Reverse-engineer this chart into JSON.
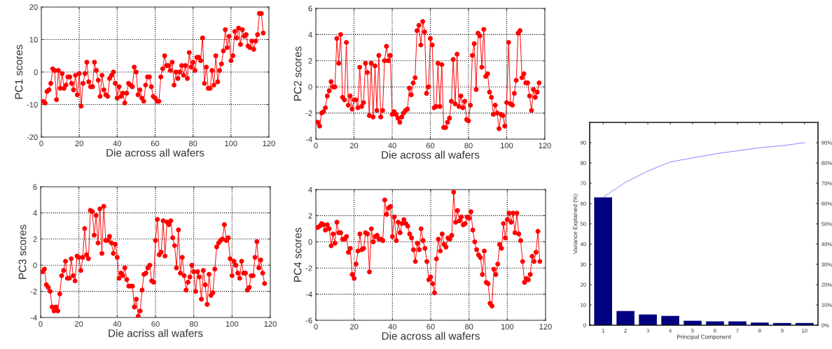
{
  "chart_data": [
    {
      "type": "line",
      "xlabel": "Die across all wafers",
      "ylabel": "PC1 scores",
      "xlim": [
        0,
        120
      ],
      "xticks": [
        0,
        20,
        40,
        60,
        80,
        100,
        120
      ],
      "ylim": [
        -20,
        20
      ],
      "yticks": [
        -20,
        -10,
        0,
        10,
        20
      ],
      "grid": true,
      "marker": "circle",
      "line_style": "solid",
      "x": [
        1,
        2,
        3,
        4,
        5,
        6,
        7,
        8,
        9,
        10,
        11,
        12,
        13,
        14,
        15,
        16,
        17,
        18,
        19,
        20,
        21,
        22,
        23,
        24,
        25,
        26,
        27,
        28,
        29,
        30,
        31,
        32,
        33,
        34,
        35,
        36,
        37,
        38,
        39,
        40,
        41,
        42,
        43,
        44,
        45,
        46,
        47,
        48,
        49,
        50,
        51,
        52,
        53,
        54,
        55,
        56,
        57,
        58,
        59,
        60,
        61,
        62,
        63,
        64,
        65,
        66,
        67,
        68,
        69,
        70,
        71,
        72,
        73,
        74,
        75,
        76,
        77,
        78,
        79,
        80,
        81,
        82,
        83,
        84,
        85,
        86,
        87,
        88,
        89,
        90,
        91,
        92,
        93,
        94,
        95,
        96,
        97,
        98,
        99,
        100,
        101,
        102,
        103,
        104,
        105,
        106,
        107,
        108,
        109,
        110,
        111,
        112,
        113,
        114,
        115,
        116,
        117
      ],
      "series": [
        {
          "color": "#ff0000",
          "values": [
            -9,
            -9.5,
            -6,
            -5.5,
            -3.5,
            1,
            0.5,
            -8.5,
            0.5,
            -5,
            -0.5,
            -5,
            -4,
            -1.5,
            -1.5,
            -3.5,
            -5.5,
            -1,
            -7,
            -0.5,
            -10.5,
            -3.5,
            -0.5,
            3,
            -3,
            -4.5,
            -4.5,
            3,
            0.5,
            -2.5,
            -7.5,
            -1,
            -5.5,
            -7,
            -7.5,
            -2,
            -1,
            0,
            -3.5,
            -8,
            -4.5,
            -7.5,
            -6.5,
            -9.5,
            -6.5,
            -3.5,
            -4,
            -4.5,
            1.5,
            0,
            -7,
            -5.5,
            -8,
            -9,
            -4,
            -1.5,
            -1.5,
            -4.5,
            -7.5,
            -8,
            -9,
            -9,
            -1.5,
            1,
            5,
            2,
            2,
            0.5,
            3,
            -4,
            0,
            -2,
            0,
            2,
            -1,
            2,
            -2,
            6,
            1.5,
            3,
            0.5,
            4.5,
            4.5,
            3.5,
            10.5,
            -3.5,
            1.5,
            -5,
            -5,
            0.5,
            -4,
            5,
            -3,
            0.5,
            2.5,
            6.5,
            13,
            7.5,
            11,
            3.5,
            5,
            12.5,
            10.5,
            13.5,
            8.5,
            13,
            11,
            11.5,
            8,
            7.5,
            9.5,
            7,
            9.5,
            11.5,
            18,
            18,
            12
          ]
        }
      ]
    },
    {
      "type": "line",
      "xlabel": "Die across all wafers",
      "ylabel": "PC2 scores",
      "xlim": [
        0,
        120
      ],
      "xticks": [
        0,
        20,
        40,
        60,
        80,
        100,
        120
      ],
      "ylim": [
        -4,
        6
      ],
      "yticks": [
        -4,
        -2,
        0,
        2,
        4,
        6
      ],
      "grid": true,
      "marker": "circle",
      "line_style": "solid",
      "x": [
        1,
        2,
        3,
        4,
        5,
        6,
        7,
        8,
        9,
        10,
        11,
        12,
        13,
        14,
        15,
        16,
        17,
        18,
        19,
        20,
        21,
        22,
        23,
        24,
        25,
        26,
        27,
        28,
        29,
        30,
        31,
        32,
        33,
        34,
        35,
        36,
        37,
        38,
        39,
        40,
        41,
        42,
        43,
        44,
        45,
        46,
        47,
        48,
        49,
        50,
        51,
        52,
        53,
        54,
        55,
        56,
        57,
        58,
        59,
        60,
        61,
        62,
        63,
        64,
        65,
        66,
        67,
        68,
        69,
        70,
        71,
        72,
        73,
        74,
        75,
        76,
        77,
        78,
        79,
        80,
        81,
        82,
        83,
        84,
        85,
        86,
        87,
        88,
        89,
        90,
        91,
        92,
        93,
        94,
        95,
        96,
        97,
        98,
        99,
        100,
        101,
        102,
        103,
        104,
        105,
        106,
        107,
        108,
        109,
        110,
        111,
        112,
        113,
        114,
        115,
        116,
        117
      ],
      "series": [
        {
          "color": "#ff0000",
          "values": [
            -2.7,
            -3,
            -2,
            -1.9,
            -1.6,
            -0.7,
            -0.3,
            0.4,
            0,
            0,
            3.7,
            1.8,
            4,
            -0.8,
            -1,
            3.4,
            -1.4,
            -0.7,
            -1.7,
            -1,
            -1,
            -1.6,
            1.5,
            -1.5,
            -1.2,
            1.8,
            1.1,
            -2.2,
            1.8,
            -2.3,
            1.6,
            -1.8,
            2.4,
            -2.3,
            -1.8,
            2,
            3.1,
            2,
            2.4,
            -2.1,
            -1.9,
            -2.1,
            -2.4,
            -2.7,
            -2.3,
            -2,
            -1.8,
            -1.7,
            -0.1,
            -0.6,
            0.3,
            0.7,
            4.3,
            4.7,
            3.2,
            5,
            4.2,
            -0.5,
            0,
            3.7,
            3.2,
            -1.6,
            -1.5,
            1.8,
            -1.5,
            1.7,
            -3.1,
            -3.1,
            -2.7,
            -2.4,
            -1.1,
            2.1,
            -1.3,
            2.5,
            -1.5,
            -0.7,
            -1.6,
            -1.1,
            -2.5,
            -2.6,
            -1.4,
            2.4,
            3.3,
            -0.2,
            4.1,
            3.9,
            1.5,
            4.4,
            0.8,
            1,
            -0.4,
            -0.8,
            -2.1,
            -1.4,
            -2,
            -3.2,
            -2.1,
            -2.2,
            -3,
            -1.2,
            3.4,
            -1.3,
            -1.4,
            -0.5,
            0.5,
            4.1,
            4.3,
            0.7,
            1,
            0.3,
            0.3,
            -0.7,
            -1.8,
            -0.2,
            -0.8,
            -0.4,
            0.3
          ]
        }
      ]
    },
    {
      "type": "line",
      "xlabel": "Die acriss all wafers",
      "ylabel": "PC3 scores",
      "xlim": [
        0,
        120
      ],
      "xticks": [
        0,
        20,
        40,
        60,
        80,
        100,
        120
      ],
      "ylim": [
        -4,
        6
      ],
      "yticks": [
        -4,
        -2,
        0,
        2,
        4,
        6
      ],
      "grid": true,
      "marker": "circle",
      "line_style": "solid",
      "x": [
        1,
        2,
        3,
        4,
        5,
        6,
        7,
        8,
        9,
        10,
        11,
        12,
        13,
        14,
        15,
        16,
        17,
        18,
        19,
        20,
        21,
        22,
        23,
        24,
        25,
        26,
        27,
        28,
        29,
        30,
        31,
        32,
        33,
        34,
        35,
        36,
        37,
        38,
        39,
        40,
        41,
        42,
        43,
        44,
        45,
        46,
        47,
        48,
        49,
        50,
        51,
        52,
        53,
        54,
        55,
        56,
        57,
        58,
        59,
        60,
        61,
        62,
        63,
        64,
        65,
        66,
        67,
        68,
        69,
        70,
        71,
        72,
        73,
        74,
        75,
        76,
        77,
        78,
        79,
        80,
        81,
        82,
        83,
        84,
        85,
        86,
        87,
        88,
        89,
        90,
        91,
        92,
        93,
        94,
        95,
        96,
        97,
        98,
        99,
        100,
        101,
        102,
        103,
        104,
        105,
        106,
        107,
        108,
        109,
        110,
        111,
        112,
        113,
        114,
        115,
        116,
        117
      ],
      "series": [
        {
          "color": "#ff0000",
          "values": [
            -0.5,
            -0.3,
            -1.5,
            -1.7,
            -2,
            -3.2,
            -3.5,
            -3.2,
            -3.5,
            -2.2,
            -0.8,
            -0.4,
            0.3,
            -1,
            -1,
            0.5,
            -0.8,
            -1.2,
            0.7,
            0.6,
            -0.4,
            0.6,
            2.8,
            0.8,
            0.5,
            4.2,
            4.1,
            2.3,
            3.8,
            1.7,
            4.3,
            0.9,
            4.5,
            1.9,
            1.9,
            2.2,
            1.7,
            0.9,
            1.6,
            0.6,
            -1,
            -0.6,
            -0.8,
            -0.2,
            -1.1,
            -1.6,
            -1.6,
            -1.6,
            -3.2,
            -2.6,
            -3.9,
            -3.5,
            -1.9,
            -0.7,
            -0.6,
            -0.2,
            0,
            -1.2,
            -1.3,
            1.9,
            3.5,
            0.8,
            1,
            3.4,
            0.7,
            3.3,
            3.1,
            3.4,
            2.1,
            1.5,
            -0.2,
            2.7,
            -0.6,
            0.6,
            -0.8,
            -1.9,
            -1.3,
            -0.9,
            0,
            -0.5,
            -2,
            -0.5,
            -0.9,
            -2.6,
            -0.4,
            -1.5,
            -3,
            -0.7,
            -2.3,
            -2.1,
            -0.3,
            1.4,
            1.7,
            1.9,
            2,
            3.1,
            1.9,
            2.1,
            0.5,
            -0.8,
            0.3,
            0,
            -0.6,
            -1,
            0.3,
            -0.6,
            -0.6,
            -1.9,
            -1.7,
            -0.8,
            -0.8,
            0.6,
            1.8,
            -0.2,
            0.4,
            -0.6,
            -1.4
          ]
        }
      ]
    },
    {
      "type": "line",
      "xlabel": "Die across all wafers",
      "ylabel": "PC4 scores",
      "xlim": [
        0,
        120
      ],
      "xticks": [
        0,
        20,
        40,
        60,
        80,
        100,
        120
      ],
      "ylim": [
        -6,
        4
      ],
      "yticks": [
        -6,
        -4,
        -2,
        0,
        2,
        4
      ],
      "grid": true,
      "marker": "circle",
      "line_style": "solid",
      "x": [
        1,
        2,
        3,
        4,
        5,
        6,
        7,
        8,
        9,
        10,
        11,
        12,
        13,
        14,
        15,
        16,
        17,
        18,
        19,
        20,
        21,
        22,
        23,
        24,
        25,
        26,
        27,
        28,
        29,
        30,
        31,
        32,
        33,
        34,
        35,
        36,
        37,
        38,
        39,
        40,
        41,
        42,
        43,
        44,
        45,
        46,
        47,
        48,
        49,
        50,
        51,
        52,
        53,
        54,
        55,
        56,
        57,
        58,
        59,
        60,
        61,
        62,
        63,
        64,
        65,
        66,
        67,
        68,
        69,
        70,
        71,
        72,
        73,
        74,
        75,
        76,
        77,
        78,
        79,
        80,
        81,
        82,
        83,
        84,
        85,
        86,
        87,
        88,
        89,
        90,
        91,
        92,
        93,
        94,
        95,
        96,
        97,
        98,
        99,
        100,
        101,
        102,
        103,
        104,
        105,
        106,
        107,
        108,
        109,
        110,
        111,
        112,
        113,
        114,
        115,
        116,
        117
      ],
      "series": [
        {
          "color": "#ff0000",
          "values": [
            1.1,
            1.2,
            1.4,
            1.3,
            0.9,
            1.3,
            1,
            -0.3,
            0.6,
            -0.1,
            1.5,
            0.7,
            0.7,
            0.2,
            0.2,
            0.4,
            -0.8,
            -0.5,
            -2.5,
            -2.8,
            -1.7,
            -0.7,
            0.6,
            -0.6,
            -0.5,
            0.7,
            0.6,
            -2.3,
            1,
            0,
            0.4,
            0.5,
            0.2,
            0.2,
            0.1,
            3.2,
            2.1,
            2.6,
            2.7,
            0.4,
            1.9,
            0.1,
            1.5,
            0.7,
            1.4,
            1.7,
            1.4,
            1.2,
            0.6,
            0.3,
            -0.6,
            -1.5,
            -0.1,
            -0.6,
            1,
            0.1,
            -0.5,
            -1.5,
            -2.9,
            -2.7,
            -3.2,
            -3.9,
            -1.3,
            0.2,
            -0.7,
            0.6,
            -0.2,
            -0.4,
            0.3,
            0.2,
            0.5,
            3.8,
            1.5,
            2.4,
            1.6,
            1.9,
            1.3,
            1.4,
            1.9,
            1.8,
            2.3,
            0.9,
            0,
            -0.6,
            -1,
            -1.2,
            -2.5,
            -0.7,
            -3.1,
            -3.2,
            -4.7,
            -4.9,
            -2.1,
            -2.5,
            -1.7,
            -0.2,
            -0.5,
            1.4,
            0.3,
            1.7,
            2.2,
            1.5,
            2.2,
            0.7,
            2.2,
            0.6,
            0.1,
            -1.5,
            -3.1,
            -2.8,
            -2.9,
            -2.5,
            -1.1,
            -1.5,
            -0.8,
            0.8,
            -1.5
          ]
        }
      ]
    },
    {
      "type": "bar",
      "xlabel": "Principal Component",
      "ylabel": "Variance Explained (%)",
      "categories": [
        "1",
        "2",
        "3",
        "4",
        "5",
        "6",
        "7",
        "8",
        "9",
        "10"
      ],
      "ylim": [
        0,
        100
      ],
      "yticks": [
        0,
        10,
        20,
        30,
        40,
        50,
        60,
        70,
        80,
        90
      ],
      "y2lim": [
        0,
        100
      ],
      "y2ticks": [
        {
          "value": 0,
          "label": "0%"
        },
        {
          "value": 10,
          "label": "10%"
        },
        {
          "value": 20,
          "label": "20%"
        },
        {
          "value": 30,
          "label": "30%"
        },
        {
          "value": 40,
          "label": "40%"
        },
        {
          "value": 50,
          "label": "50%"
        },
        {
          "value": 60,
          "label": "60%"
        },
        {
          "value": 70,
          "label": "70%"
        },
        {
          "value": 80,
          "label": "80%"
        },
        {
          "value": 90,
          "label": "90%"
        }
      ],
      "series": [
        {
          "type": "bar",
          "color": "#000080",
          "values": [
            63,
            7,
            5.3,
            4.6,
            2.2,
            1.9,
            1.9,
            1.3,
            1.1,
            1.1
          ]
        },
        {
          "type": "line",
          "axis": "y2",
          "color": "#8080ff",
          "values": [
            63,
            70.5,
            76,
            80.5,
            82.5,
            84.5,
            86,
            87.5,
            88.5,
            90
          ]
        }
      ]
    }
  ]
}
